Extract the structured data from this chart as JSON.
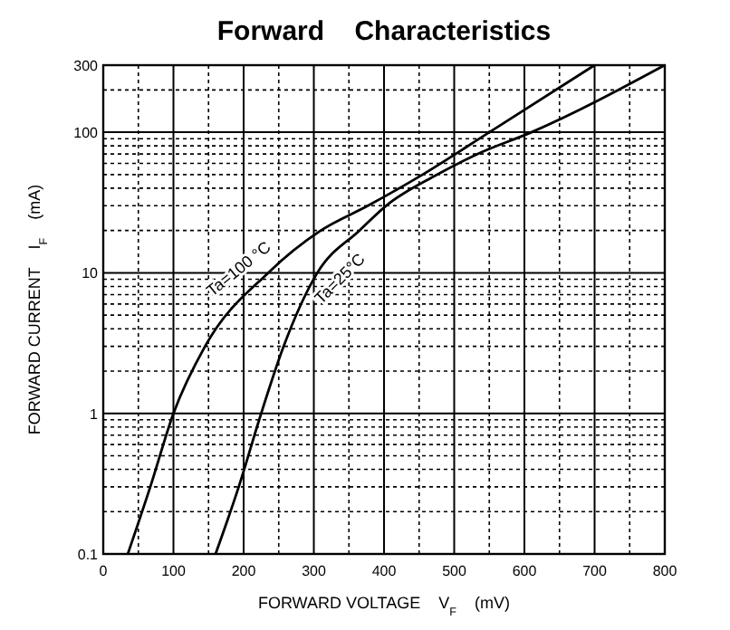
{
  "chart_data": {
    "type": "line",
    "title": "Forward    Characteristics",
    "xlabel": "FORWARD VOLTAGE    V$_{F}$    (mV)",
    "ylabel": "FORWARD CURRENT    I$_{F}$    (mA)",
    "log": "y",
    "grid": true,
    "marker": "none",
    "line_style": "solid",
    "xlim": [
      0,
      800
    ],
    "xticks": [
      0,
      100,
      200,
      300,
      400,
      500,
      600,
      700,
      800
    ],
    "ylim": [
      0.1,
      300
    ],
    "yticks": [
      0.1,
      1,
      10,
      100,
      300
    ],
    "series": [
      {
        "name": "Ta=100 °C",
        "color": "#000000",
        "x": [
          35,
          67,
          100,
          145,
          235,
          310,
          377,
          455,
          550,
          700
        ],
        "values": [
          0.1,
          0.3,
          1,
          3,
          10,
          20,
          30,
          50,
          100,
          300
        ]
      },
      {
        "name": "Ta=25°C",
        "color": "#000000",
        "x": [
          160,
          193,
          225,
          257,
          305,
          365,
          403,
          476,
          533,
          610,
          800
        ],
        "values": [
          0.1,
          0.3,
          1,
          3,
          10,
          20,
          30,
          50,
          70,
          100,
          300
        ]
      }
    ]
  }
}
